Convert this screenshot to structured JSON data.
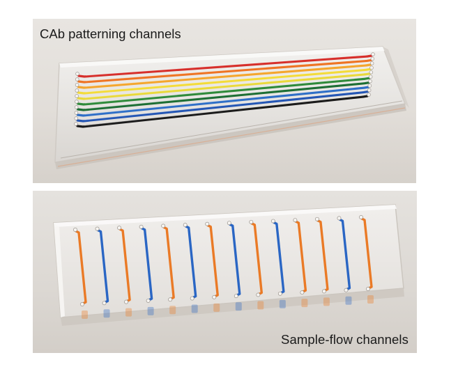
{
  "panels": [
    {
      "caption": "CAb patterning channels",
      "channel_colors": [
        "#d62f2b",
        "#ee7424",
        "#f4a62e",
        "#f3db3a",
        "#e9d93c",
        "#2f8a3a",
        "#1d6e34",
        "#2f6fc7",
        "#2456b4",
        "#1b1b1b"
      ]
    },
    {
      "caption": "Sample-flow channels",
      "channel_colors": [
        "#ea7a26",
        "#2a66c4",
        "#ea7a26",
        "#2a66c4",
        "#ea7a26",
        "#2a66c4",
        "#ea7a26",
        "#2a66c4",
        "#ea7a26",
        "#2a66c4",
        "#ea7a26",
        "#ea7a26",
        "#2a66c4",
        "#ea7a26"
      ]
    }
  ]
}
